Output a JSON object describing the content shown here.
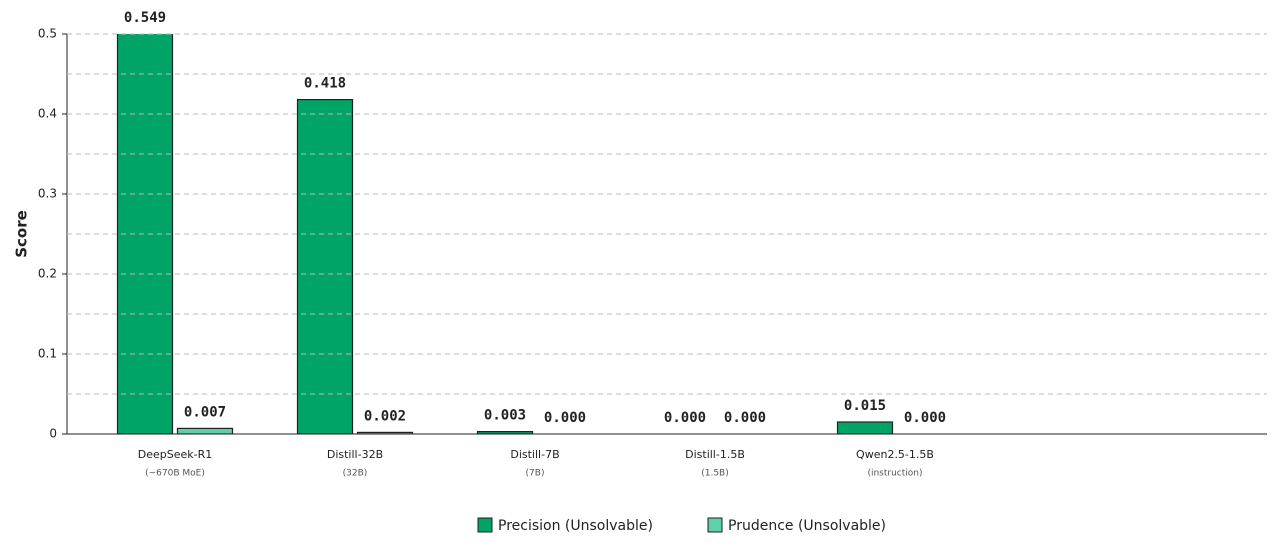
{
  "chart_data": {
    "type": "bar",
    "y_label": "Score",
    "categories": [
      "DeepSeek-R1",
      "Distill-32B",
      "Distill-7B",
      "Distill-1.5B",
      "Qwen2.5-1.5B"
    ],
    "category_details": [
      "(~670B MoE)",
      "(32B)",
      "(7B)",
      "(1.5B)",
      "(instruction)"
    ],
    "series": [
      {
        "name": "Precision (Unsolvable)",
        "color": "#00a466",
        "values": [
          0.549,
          0.418,
          0.003,
          0,
          0.015
        ],
        "value_labels": [
          "0.549",
          "0.418",
          "0.003",
          "0.000",
          "0.015"
        ]
      },
      {
        "name": "Prudence (Unsolvable)",
        "color": "#5fd0a8",
        "values": [
          0.007,
          0.002,
          0,
          0,
          0
        ],
        "value_labels": [
          "0.007",
          "0.002",
          "0.000",
          "0.000",
          "0.000"
        ]
      }
    ],
    "ylim": [
      0,
      0.5
    ],
    "yticks": [
      0,
      0.1,
      0.2,
      0.3,
      0.4,
      0.5
    ],
    "minor_yticks": [
      0.05,
      0.15,
      0.25,
      0.35,
      0.45
    ],
    "grid": true,
    "legend": "bottom"
  }
}
